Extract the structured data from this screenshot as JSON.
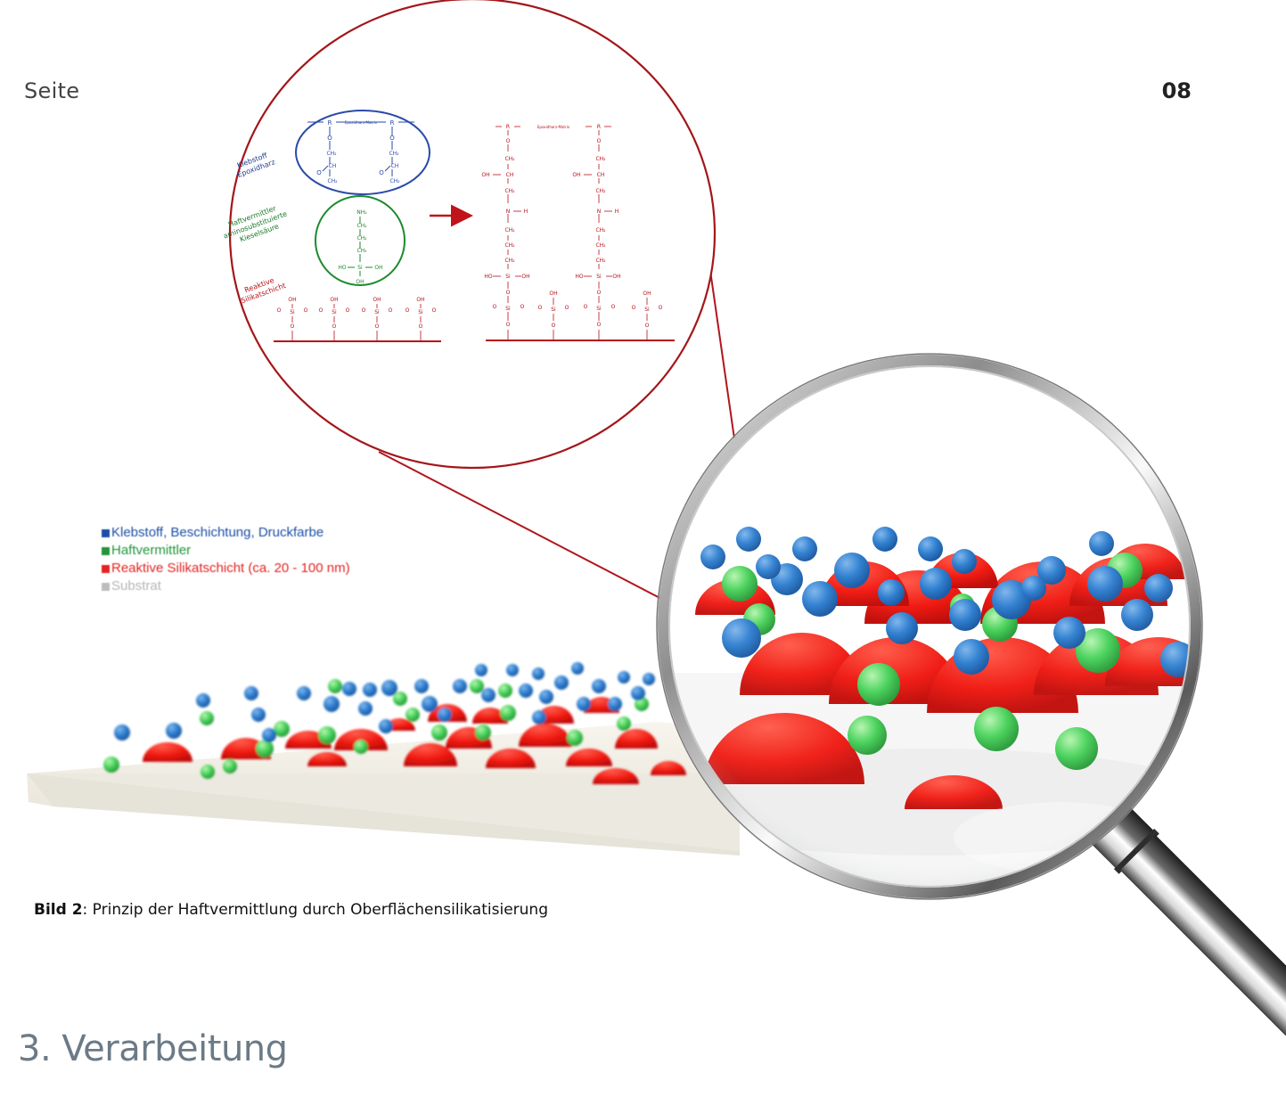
{
  "header": {
    "page_label": "Seite",
    "page_number": "08"
  },
  "diagram": {
    "labels": {
      "adhesive": [
        "Klebstoff",
        "Epoxidharz"
      ],
      "promoter": [
        "Haftvermittler",
        "aminosubstituierte",
        "Kieselsäure"
      ],
      "silicate": [
        "Reaktive",
        "Silikatschicht"
      ]
    },
    "left_matrix_label": "Epoxidharz-Matrix",
    "right_matrix_label": "Epoxidharz-Matrix",
    "colors": {
      "adhesive": "#1f3e8f",
      "promoter": "#1a7a2a",
      "silicate": "#b5121b",
      "outline": "#a4161a"
    }
  },
  "legend": {
    "items": [
      {
        "label": "Klebstoff, Beschichtung, Druckfarbe",
        "color": "#1d4fa8"
      },
      {
        "label": "Haftvermittler",
        "color": "#22953a"
      },
      {
        "label": "Reaktive Silikatschicht (ca. 20 - 100 nm)",
        "color": "#e52421"
      },
      {
        "label": "Substrat",
        "color": "#bdbdbd"
      }
    ]
  },
  "caption": {
    "bold": "Bild 2",
    "text": ": Prinzip der Haftvermittlung durch Oberflächensilikatisierung"
  },
  "section": {
    "title": "3. Verarbeitung"
  }
}
